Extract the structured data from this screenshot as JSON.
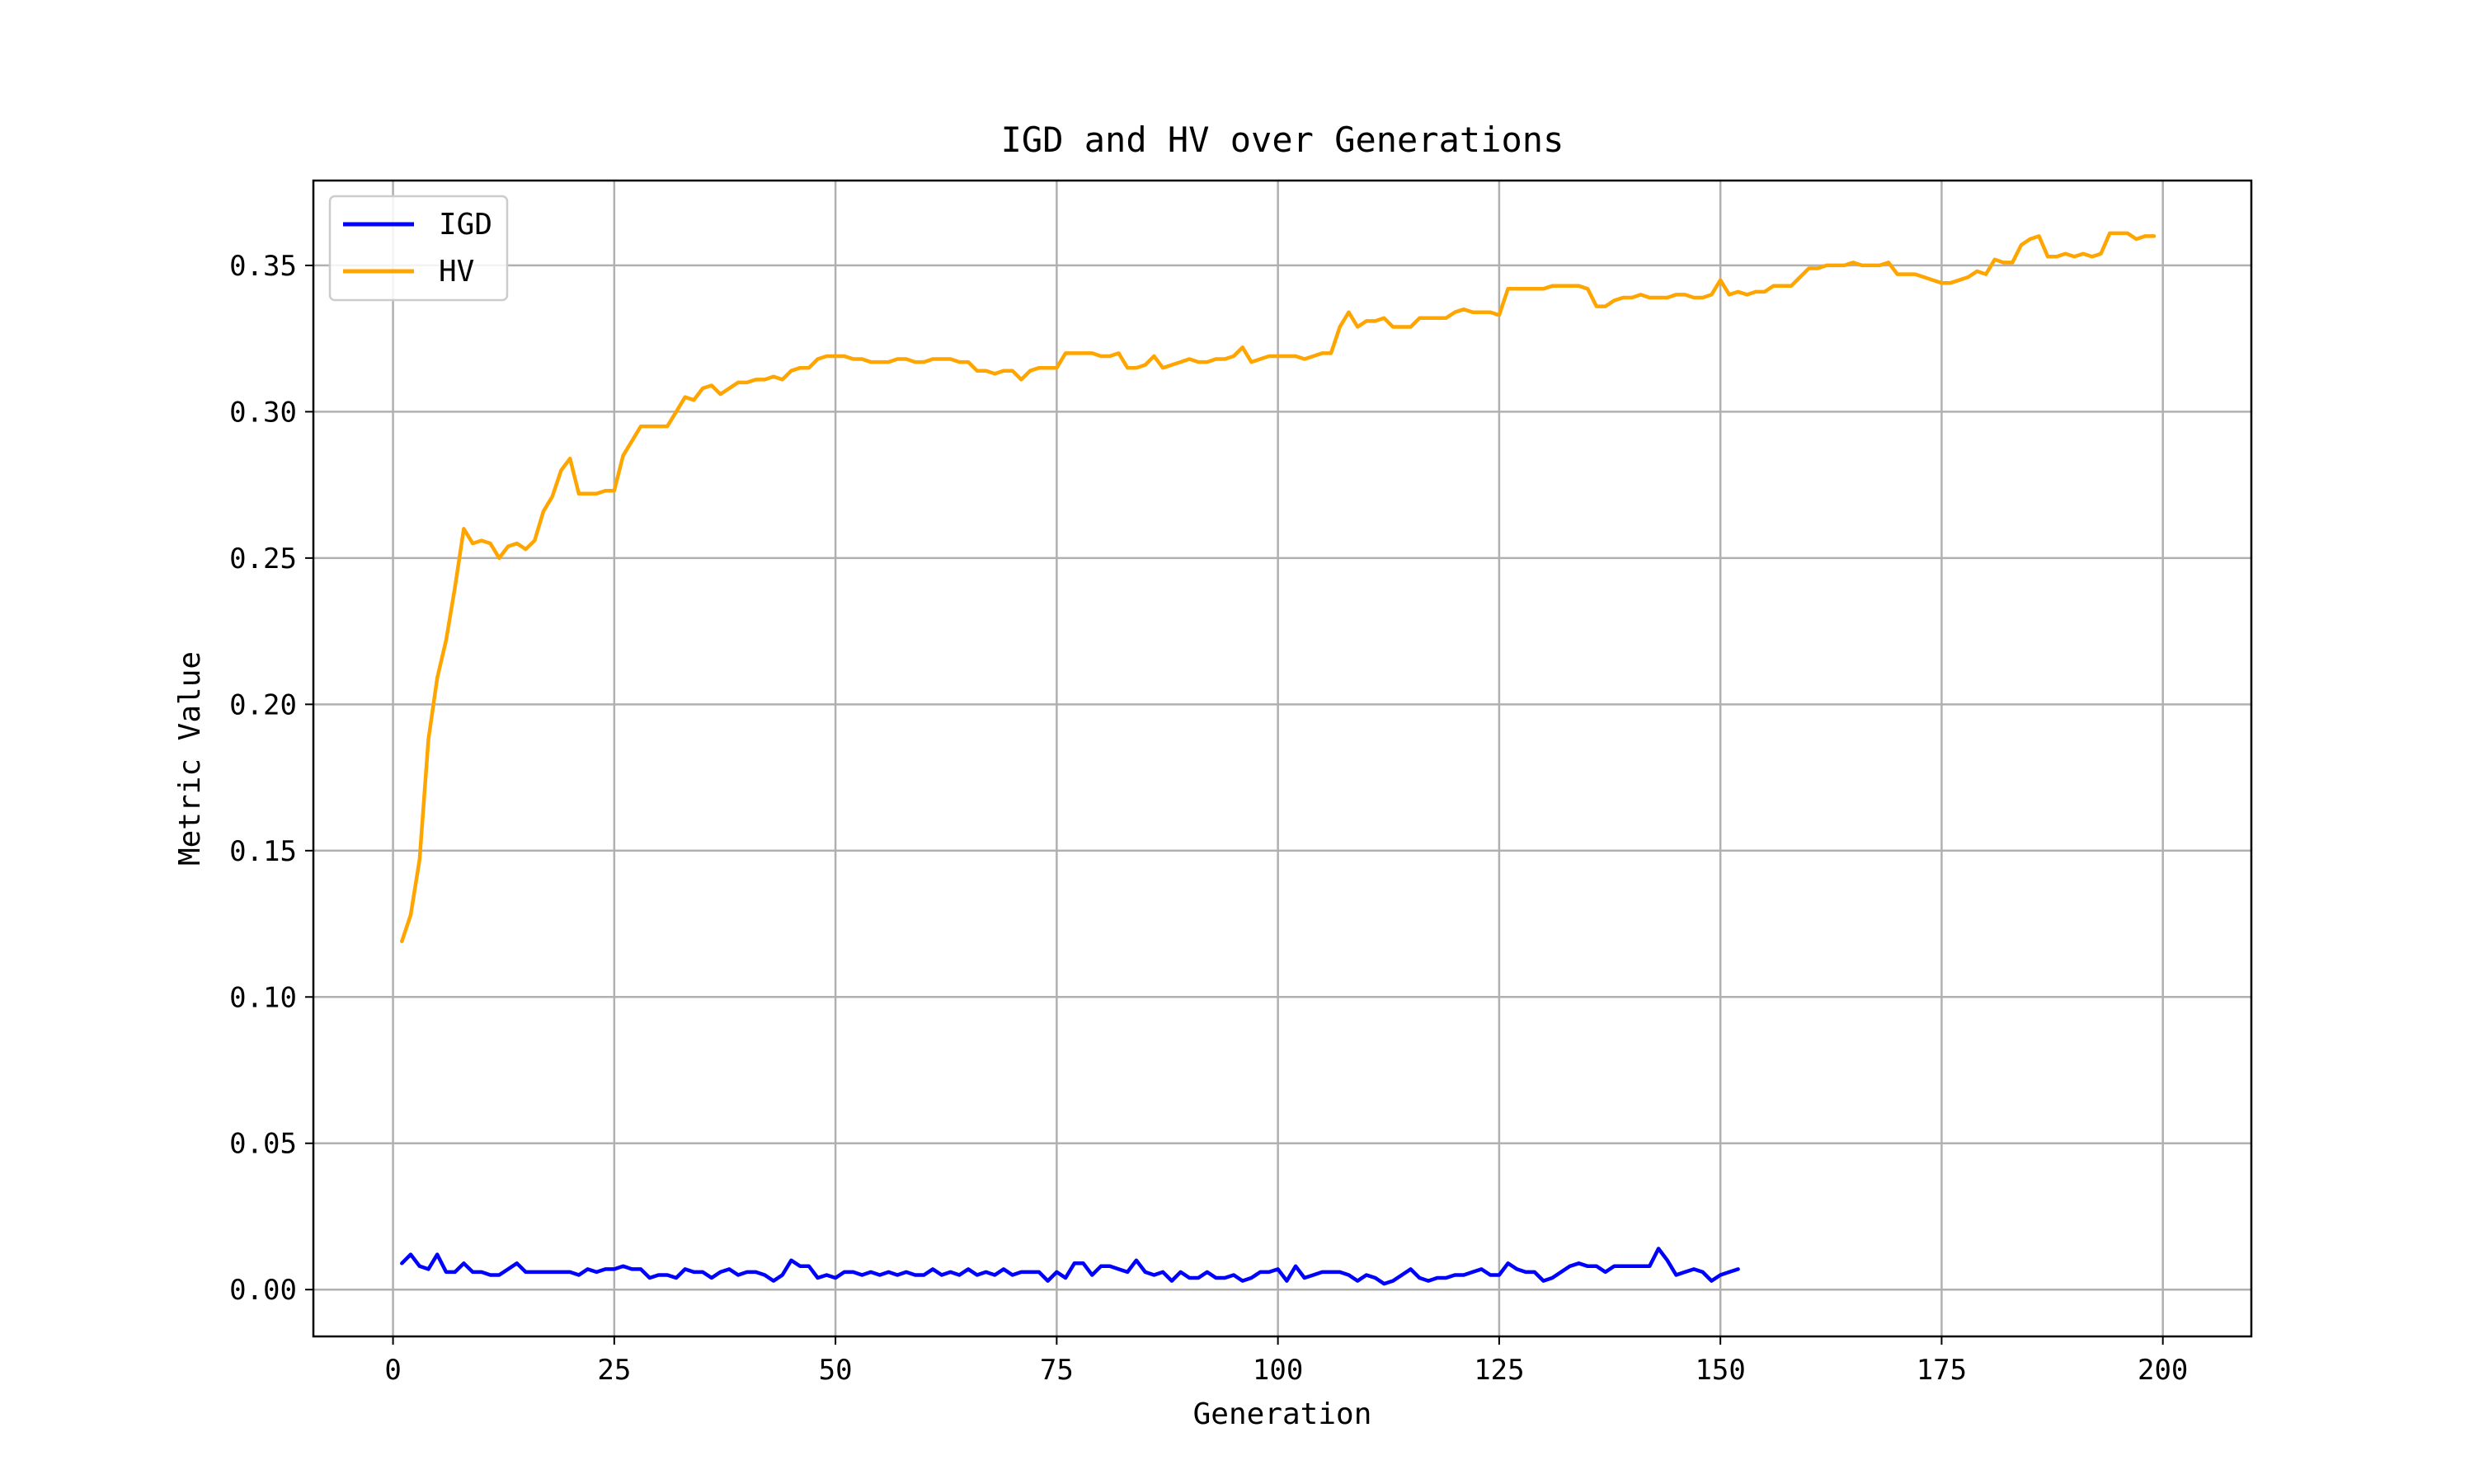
{
  "chart_data": {
    "type": "line",
    "title": "IGD and HV over Generations",
    "xlabel": "Generation",
    "ylabel": "Metric Value",
    "xlim": [
      -9,
      210
    ],
    "ylim": [
      -0.016,
      0.379
    ],
    "xticks": [
      0,
      25,
      50,
      75,
      100,
      125,
      150,
      175,
      200
    ],
    "xtick_labels": [
      "0",
      "25",
      "50",
      "75",
      "100",
      "125",
      "150",
      "175",
      "200"
    ],
    "yticks": [
      0.0,
      0.05,
      0.1,
      0.15,
      0.2,
      0.25,
      0.3,
      0.35
    ],
    "ytick_labels": [
      "0.00",
      "0.05",
      "0.10",
      "0.15",
      "0.20",
      "0.25",
      "0.30",
      "0.35"
    ],
    "grid": true,
    "legend_position": "top-left",
    "series": [
      {
        "name": "IGD",
        "color": "#0000ff",
        "x_start": 1,
        "values": [
          0.009,
          0.012,
          0.008,
          0.007,
          0.012,
          0.006,
          0.006,
          0.009,
          0.006,
          0.006,
          0.005,
          0.005,
          0.007,
          0.009,
          0.006,
          0.006,
          0.006,
          0.006,
          0.006,
          0.006,
          0.005,
          0.007,
          0.006,
          0.007,
          0.007,
          0.008,
          0.007,
          0.007,
          0.004,
          0.005,
          0.005,
          0.004,
          0.007,
          0.006,
          0.006,
          0.004,
          0.006,
          0.007,
          0.005,
          0.006,
          0.006,
          0.005,
          0.003,
          0.005,
          0.01,
          0.008,
          0.008,
          0.004,
          0.005,
          0.004,
          0.006,
          0.006,
          0.005,
          0.006,
          0.005,
          0.006,
          0.005,
          0.006,
          0.005,
          0.005,
          0.007,
          0.005,
          0.006,
          0.005,
          0.007,
          0.005,
          0.006,
          0.005,
          0.007,
          0.005,
          0.006,
          0.006,
          0.006,
          0.003,
          0.006,
          0.004,
          0.009,
          0.009,
          0.005,
          0.008,
          0.008,
          0.007,
          0.006,
          0.01,
          0.006,
          0.005,
          0.006,
          0.003,
          0.006,
          0.004,
          0.004,
          0.006,
          0.004,
          0.004,
          0.005,
          0.003,
          0.004,
          0.006,
          0.006,
          0.007,
          0.003,
          0.008,
          0.004,
          0.005,
          0.006,
          0.006,
          0.006,
          0.005,
          0.003,
          0.005,
          0.004,
          0.002,
          0.003,
          0.005,
          0.007,
          0.004,
          0.003,
          0.004,
          0.004,
          0.005,
          0.005,
          0.006,
          0.007,
          0.005,
          0.005,
          0.009,
          0.007,
          0.006,
          0.006,
          0.003,
          0.004,
          0.006,
          0.008,
          0.009,
          0.008,
          0.008,
          0.006,
          0.008,
          0.008,
          0.008,
          0.008,
          0.008,
          0.014,
          0.01,
          0.005,
          0.006,
          0.007,
          0.006,
          0.003,
          0.005,
          0.006,
          0.007
        ]
      },
      {
        "name": "HV",
        "color": "#ffa500",
        "x_start": 1,
        "values": [
          0.119,
          0.128,
          0.147,
          0.188,
          0.209,
          0.222,
          0.24,
          0.26,
          0.255,
          0.256,
          0.255,
          0.25,
          0.254,
          0.255,
          0.253,
          0.256,
          0.266,
          0.271,
          0.28,
          0.284,
          0.272,
          0.272,
          0.272,
          0.273,
          0.273,
          0.285,
          0.29,
          0.295,
          0.295,
          0.295,
          0.295,
          0.3,
          0.305,
          0.304,
          0.308,
          0.309,
          0.306,
          0.308,
          0.31,
          0.31,
          0.311,
          0.311,
          0.312,
          0.311,
          0.314,
          0.315,
          0.315,
          0.318,
          0.319,
          0.319,
          0.319,
          0.318,
          0.318,
          0.317,
          0.317,
          0.317,
          0.318,
          0.318,
          0.317,
          0.317,
          0.318,
          0.318,
          0.318,
          0.317,
          0.317,
          0.314,
          0.314,
          0.313,
          0.314,
          0.314,
          0.311,
          0.314,
          0.315,
          0.315,
          0.315,
          0.32,
          0.32,
          0.32,
          0.32,
          0.319,
          0.319,
          0.32,
          0.315,
          0.315,
          0.316,
          0.319,
          0.315,
          0.316,
          0.317,
          0.318,
          0.317,
          0.317,
          0.318,
          0.318,
          0.319,
          0.322,
          0.317,
          0.318,
          0.319,
          0.319,
          0.319,
          0.319,
          0.318,
          0.319,
          0.32,
          0.32,
          0.329,
          0.334,
          0.329,
          0.331,
          0.331,
          0.332,
          0.329,
          0.329,
          0.329,
          0.332,
          0.332,
          0.332,
          0.332,
          0.334,
          0.335,
          0.334,
          0.334,
          0.334,
          0.333,
          0.342,
          0.342,
          0.342,
          0.342,
          0.342,
          0.343,
          0.343,
          0.343,
          0.343,
          0.342,
          0.336,
          0.336,
          0.338,
          0.339,
          0.339,
          0.34,
          0.339,
          0.339,
          0.339,
          0.34,
          0.34,
          0.339,
          0.339,
          0.34,
          0.345,
          0.34,
          0.341,
          0.34,
          0.341,
          0.341,
          0.343,
          0.343,
          0.343,
          0.346,
          0.349,
          0.349,
          0.35,
          0.35,
          0.35,
          0.351,
          0.35,
          0.35,
          0.35,
          0.351,
          0.347,
          0.347,
          0.347,
          0.346,
          0.345,
          0.344,
          0.344,
          0.345,
          0.346,
          0.348,
          0.347,
          0.352,
          0.351,
          0.351,
          0.357,
          0.359,
          0.36,
          0.353,
          0.353,
          0.354,
          0.353,
          0.354,
          0.353,
          0.354,
          0.361,
          0.361,
          0.361,
          0.359,
          0.36,
          0.36
        ]
      }
    ]
  }
}
